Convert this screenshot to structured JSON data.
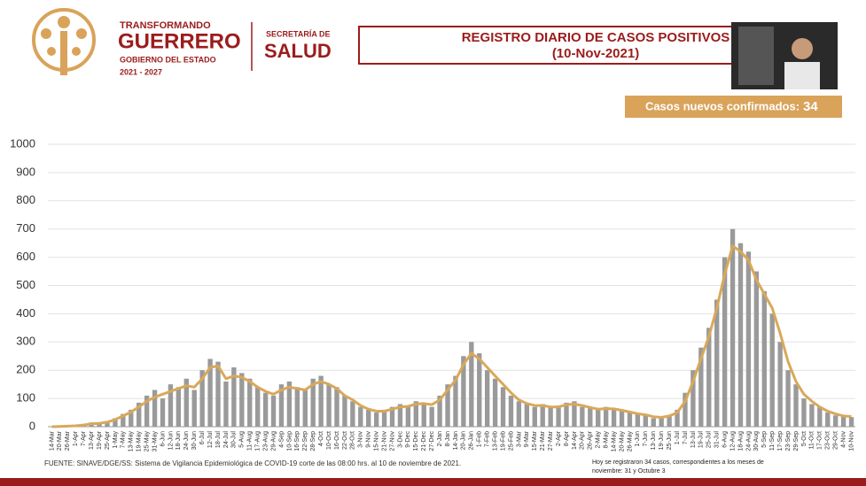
{
  "header": {
    "brand_top": "TRANSFORMANDO",
    "brand_main": "GUERRERO",
    "brand_sub": "GOBIERNO DEL ESTADO",
    "brand_years": "2021 - 2027",
    "dept_top": "SECRETARÍA DE",
    "dept_main": "SALUD",
    "new_cases_label": "Casos nuevos confirmados:",
    "new_cases": 34
  },
  "chart_data": {
    "type": "bar",
    "title": "REGISTRO DIARIO DE CASOS POSITIVOS",
    "subtitle": "(10-Nov-2021)",
    "categories": [
      "14-Mar",
      "20-Mar",
      "26-Mar",
      "1-Apr",
      "7-Apr",
      "13-Apr",
      "19-Apr",
      "25-Apr",
      "1-May",
      "7-May",
      "13-May",
      "19-May",
      "25-May",
      "31-May",
      "6-Jun",
      "12-Jun",
      "18-Jun",
      "24-Jun",
      "30-Jun",
      "6-Jul",
      "12-Jul",
      "18-Jul",
      "24-Jul",
      "30-Jul",
      "5-Aug",
      "11-Aug",
      "17-Aug",
      "23-Aug",
      "29-Aug",
      "4-Sep",
      "10-Sep",
      "16-Sep",
      "22-Sep",
      "28-Sep",
      "4-Oct",
      "10-Oct",
      "16-Oct",
      "22-Oct",
      "28-Oct",
      "3-Nov",
      "9-Nov",
      "15-Nov",
      "21-Nov",
      "27-Nov",
      "3-Dec",
      "9-Dec",
      "15-Dec",
      "21-Dec",
      "27-Dec",
      "2-Jan",
      "8-Jan",
      "14-Jan",
      "20-Jan",
      "26-Jan",
      "1-Feb",
      "7-Feb",
      "13-Feb",
      "19-Feb",
      "25-Feb",
      "3-Mar",
      "9-Mar",
      "15-Mar",
      "21-Mar",
      "27-Mar",
      "2-Apr",
      "8-Apr",
      "14-Apr",
      "20-Apr",
      "26-Apr",
      "2-May",
      "8-May",
      "14-May",
      "20-May",
      "26-May",
      "1-Jun",
      "7-Jun",
      "13-Jun",
      "19-Jun",
      "25-Jun",
      "1-Jul",
      "7-Jul",
      "13-Jul",
      "19-Jul",
      "25-Jul",
      "31-Jul",
      "6-Aug",
      "12-Aug",
      "18-Aug",
      "24-Aug",
      "30-Aug",
      "5-Sep",
      "11-Sep",
      "17-Sep",
      "23-Sep",
      "29-Sep",
      "5-Oct",
      "11-Oct",
      "17-Oct",
      "23-Oct",
      "29-Oct",
      "4-Nov",
      "10-Nov"
    ],
    "series": [
      {
        "type": "bar",
        "color": "#9a9a9a",
        "values": [
          0,
          2,
          3,
          5,
          8,
          15,
          12,
          20,
          30,
          45,
          60,
          85,
          110,
          130,
          100,
          150,
          140,
          170,
          130,
          200,
          240,
          230,
          160,
          210,
          190,
          170,
          140,
          120,
          110,
          150,
          160,
          140,
          130,
          170,
          180,
          150,
          140,
          110,
          90,
          70,
          60,
          50,
          60,
          70,
          80,
          75,
          90,
          85,
          70,
          110,
          150,
          180,
          250,
          300,
          260,
          200,
          170,
          140,
          110,
          90,
          80,
          70,
          80,
          70,
          75,
          85,
          90,
          70,
          65,
          60,
          70,
          65,
          55,
          50,
          45,
          40,
          30,
          35,
          40,
          60,
          120,
          200,
          280,
          350,
          450,
          600,
          700,
          650,
          620,
          550,
          480,
          400,
          300,
          200,
          150,
          100,
          80,
          70,
          50,
          40,
          35,
          34
        ]
      },
      {
        "type": "line",
        "color": "#d9a85a",
        "values": [
          0,
          1,
          2,
          3,
          6,
          10,
          12,
          16,
          25,
          38,
          52,
          70,
          90,
          105,
          115,
          125,
          135,
          145,
          140,
          170,
          210,
          215,
          170,
          180,
          175,
          160,
          140,
          125,
          115,
          130,
          140,
          135,
          130,
          150,
          160,
          150,
          135,
          110,
          95,
          75,
          62,
          55,
          55,
          62,
          70,
          72,
          80,
          82,
          78,
          95,
          130,
          165,
          220,
          260,
          240,
          210,
          180,
          150,
          120,
          95,
          82,
          75,
          75,
          70,
          70,
          78,
          80,
          75,
          68,
          62,
          64,
          63,
          58,
          52,
          46,
          42,
          35,
          33,
          38,
          50,
          90,
          160,
          240,
          320,
          420,
          540,
          640,
          620,
          590,
          520,
          470,
          420,
          330,
          230,
          160,
          115,
          90,
          70,
          55,
          45,
          38,
          36
        ]
      }
    ],
    "ylim": [
      0,
      1000
    ],
    "yticks": [
      0,
      100,
      200,
      300,
      400,
      500,
      600,
      700,
      800,
      900,
      1000
    ],
    "grid": true,
    "source": "FUENTE: SINAVE/DGE/SS: Sistema de Vigilancia Epidemiológica de COVID-19 corte de las 08:00 hrs. al 10 de noviembre de 2021.",
    "note_line1": "Hoy se registraron 34 casos, correspondientes a los meses de",
    "note_line2": "noviembre: 31 y Octubre 3"
  }
}
